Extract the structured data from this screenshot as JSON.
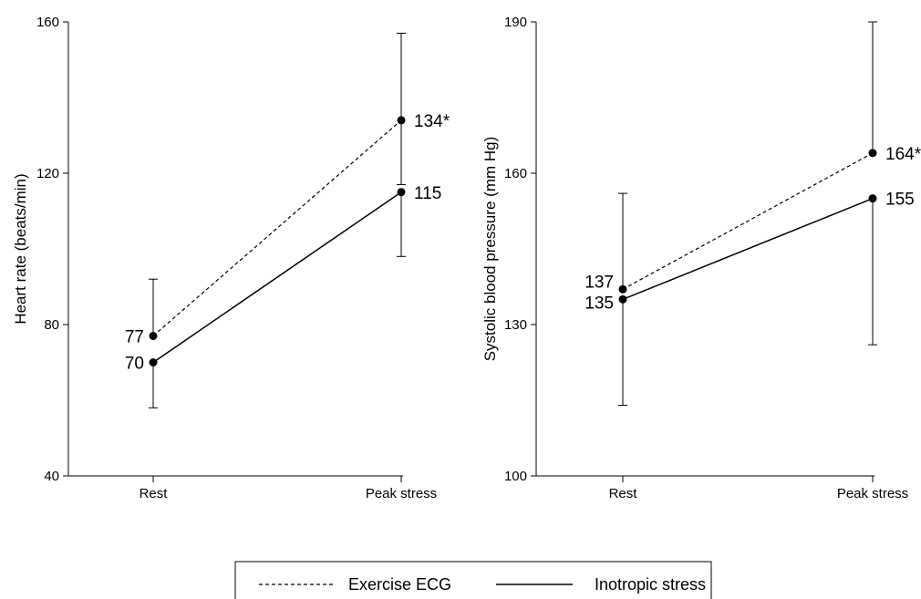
{
  "chart_data": [
    {
      "type": "line",
      "categories": [
        "Rest",
        "Peak stress"
      ],
      "ylabel": "Heart rate (beats/min)",
      "ylim": [
        40,
        160
      ],
      "yticks": [
        "40",
        "80",
        "120",
        "160"
      ],
      "series": [
        {
          "name": "Exercise ECG",
          "style": "dashed",
          "values": [
            77,
            134
          ],
          "labels": [
            "77",
            "134*"
          ],
          "error_low": [
            null,
            117
          ],
          "error_high": [
            92,
            157
          ]
        },
        {
          "name": "Inotropic stress",
          "style": "solid",
          "values": [
            70,
            115
          ],
          "labels": [
            "70",
            "115"
          ],
          "error_low": [
            58,
            98
          ],
          "error_high": [
            null,
            null
          ]
        }
      ]
    },
    {
      "type": "line",
      "categories": [
        "Rest",
        "Peak stress"
      ],
      "ylabel": "Systolic blood pressure (mm Hg)",
      "ylim": [
        100,
        190
      ],
      "yticks": [
        "100",
        "130",
        "160",
        "190"
      ],
      "series": [
        {
          "name": "Exercise ECG",
          "style": "dashed",
          "values": [
            137,
            164
          ],
          "labels": [
            "137",
            "164*"
          ],
          "error_low": [
            null,
            null
          ],
          "error_high": [
            156,
            190
          ]
        },
        {
          "name": "Inotropic stress",
          "style": "solid",
          "values": [
            135,
            155
          ],
          "labels": [
            "135",
            "155"
          ],
          "error_low": [
            114,
            126
          ],
          "error_high": [
            null,
            null
          ]
        }
      ]
    }
  ],
  "legend": {
    "placement": "bottom-center",
    "items": [
      {
        "label": "Exercise ECG",
        "style": "dashed"
      },
      {
        "label": "Inotropic stress",
        "style": "solid"
      }
    ]
  }
}
